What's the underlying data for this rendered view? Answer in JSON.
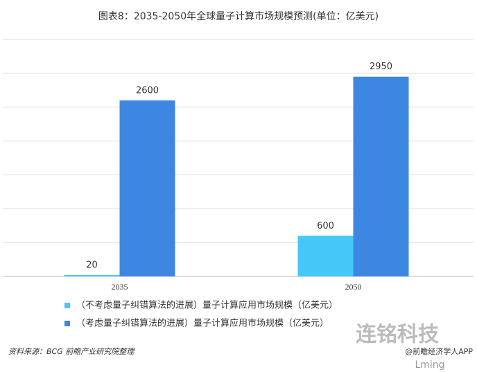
{
  "chart_data": {
    "type": "bar",
    "title": "图表8：2035-2050年全球量子计算市场规模预测(单位：亿美元)",
    "categories": [
      "2035",
      "2050"
    ],
    "series": [
      {
        "name": "（不考虑量子纠错算法的进展）量子计算应用市场规模（亿美元）",
        "color": "#45c8f7",
        "values": [
          20,
          600
        ]
      },
      {
        "name": "（考虑量子纠错算法的进展）量子计算应用市场规模（亿美元）",
        "color": "#3d87e2",
        "values": [
          2600,
          2950
        ]
      }
    ],
    "ylim": [
      0,
      3500
    ],
    "yticks": [
      0,
      500,
      1000,
      1500,
      2000,
      2500,
      3000,
      3500
    ],
    "grid": true,
    "source": "资料来源：BCG 前瞻产业研究院整理",
    "watermarks": [
      "连铭科技",
      "@前瞻经济学人APP",
      "Lming"
    ]
  }
}
